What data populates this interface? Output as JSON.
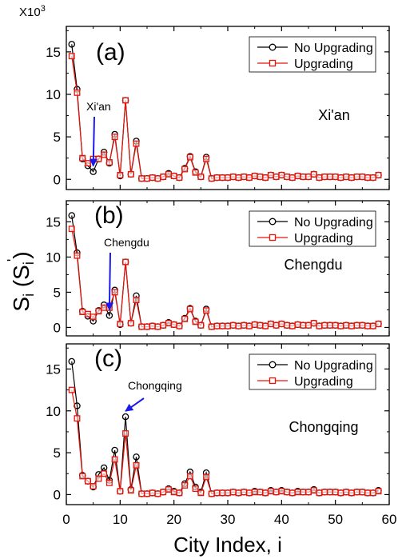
{
  "figure": {
    "multiplier": "X10",
    "multiplier_exp": "3",
    "ylabel_main": "S",
    "ylabel_sub": "i",
    "ylabel_paren_open": " (S",
    "ylabel_prime_sub": "i",
    "ylabel_prime": "'",
    "ylabel_paren_close": ")",
    "xlabel": "City Index, i",
    "xlim": [
      0,
      60
    ],
    "ylim": [
      -1.2,
      18
    ],
    "x_ticks": [
      0,
      10,
      20,
      30,
      40,
      50,
      60
    ],
    "y_ticks": [
      0,
      5,
      10,
      15
    ],
    "colors": {
      "no_upgrading": "#000000",
      "upgrading": "#e8140a",
      "arrow": "#1a1aee",
      "axis": "#000000"
    }
  },
  "chart_data": [
    {
      "type": "line",
      "panel": "(a)",
      "city": "Xi'an",
      "annotation": {
        "text": "Xi'an",
        "x": 5,
        "y": 0.9
      },
      "legend": [
        "No Upgrading",
        "Upgrading"
      ],
      "legend_position": "top-right",
      "x": [
        1,
        2,
        3,
        4,
        5,
        6,
        7,
        8,
        9,
        10,
        11,
        12,
        13,
        14,
        15,
        16,
        17,
        18,
        19,
        20,
        21,
        22,
        23,
        24,
        25,
        26,
        27,
        28,
        29,
        30,
        31,
        32,
        33,
        34,
        35,
        36,
        37,
        38,
        39,
        40,
        41,
        42,
        43,
        44,
        45,
        46,
        47,
        48,
        49,
        50,
        51,
        52,
        53,
        54,
        55,
        56,
        57,
        58
      ],
      "series": [
        {
          "name": "No Upgrading",
          "marker": "circle",
          "values": [
            15.9,
            10.6,
            2.4,
            1.6,
            0.9,
            2.4,
            3.2,
            1.9,
            5.3,
            0.4,
            9.3,
            0.6,
            4.5,
            0.1,
            0.1,
            0.2,
            0.1,
            0.3,
            0.7,
            0.4,
            0.2,
            1.3,
            2.7,
            0.9,
            0.3,
            2.6,
            0.1,
            0.2,
            0.2,
            0.2,
            0.3,
            0.2,
            0.3,
            0.2,
            0.4,
            0.3,
            0.2,
            0.5,
            0.3,
            0.5,
            0.3,
            0.2,
            0.4,
            0.3,
            0.3,
            0.6,
            0.2,
            0.3,
            0.3,
            0.3,
            0.2,
            0.3,
            0.2,
            0.3,
            0.3,
            0.2,
            0.2,
            0.5
          ]
        },
        {
          "name": "Upgrading",
          "marker": "square",
          "values": [
            14.5,
            10.2,
            2.5,
            1.9,
            2.4,
            2.4,
            2.9,
            2.0,
            5.0,
            0.5,
            9.3,
            0.6,
            4.2,
            0.1,
            0.1,
            0.2,
            0.1,
            0.3,
            0.6,
            0.4,
            0.2,
            1.2,
            2.6,
            0.8,
            0.3,
            2.4,
            0.1,
            0.2,
            0.2,
            0.2,
            0.3,
            0.2,
            0.3,
            0.2,
            0.4,
            0.3,
            0.2,
            0.5,
            0.3,
            0.5,
            0.3,
            0.2,
            0.4,
            0.3,
            0.3,
            0.6,
            0.2,
            0.3,
            0.3,
            0.3,
            0.2,
            0.3,
            0.2,
            0.3,
            0.3,
            0.2,
            0.2,
            0.5
          ]
        }
      ]
    },
    {
      "type": "line",
      "panel": "(b)",
      "city": "Chengdu",
      "annotation": {
        "text": "Chengdu",
        "x": 8,
        "y": 1.7
      },
      "legend": [
        "No Upgrading",
        "Upgrading"
      ],
      "legend_position": "top-right",
      "x": [
        1,
        2,
        3,
        4,
        5,
        6,
        7,
        8,
        9,
        10,
        11,
        12,
        13,
        14,
        15,
        16,
        17,
        18,
        19,
        20,
        21,
        22,
        23,
        24,
        25,
        26,
        27,
        28,
        29,
        30,
        31,
        32,
        33,
        34,
        35,
        36,
        37,
        38,
        39,
        40,
        41,
        42,
        43,
        44,
        45,
        46,
        47,
        48,
        49,
        50,
        51,
        52,
        53,
        54,
        55,
        56,
        57,
        58
      ],
      "series": [
        {
          "name": "No Upgrading",
          "marker": "circle",
          "values": [
            15.9,
            10.6,
            2.3,
            1.6,
            0.9,
            2.4,
            3.2,
            1.7,
            5.3,
            0.4,
            9.3,
            0.6,
            4.5,
            0.1,
            0.1,
            0.2,
            0.1,
            0.3,
            0.7,
            0.4,
            0.2,
            1.3,
            2.7,
            0.9,
            0.3,
            2.6,
            0.1,
            0.2,
            0.2,
            0.2,
            0.3,
            0.2,
            0.3,
            0.2,
            0.4,
            0.3,
            0.2,
            0.5,
            0.3,
            0.5,
            0.3,
            0.2,
            0.4,
            0.3,
            0.3,
            0.6,
            0.2,
            0.3,
            0.3,
            0.3,
            0.2,
            0.3,
            0.2,
            0.3,
            0.3,
            0.2,
            0.2,
            0.5
          ]
        },
        {
          "name": "Upgrading",
          "marker": "square",
          "values": [
            14.0,
            10.2,
            2.2,
            1.9,
            1.5,
            2.3,
            2.8,
            2.8,
            5.0,
            0.5,
            9.3,
            0.6,
            3.9,
            0.1,
            0.1,
            0.2,
            0.1,
            0.3,
            0.6,
            0.4,
            0.2,
            1.2,
            2.6,
            0.8,
            0.3,
            2.4,
            0.1,
            0.2,
            0.2,
            0.2,
            0.3,
            0.2,
            0.3,
            0.2,
            0.4,
            0.3,
            0.2,
            0.5,
            0.3,
            0.5,
            0.3,
            0.2,
            0.4,
            0.3,
            0.3,
            0.6,
            0.2,
            0.3,
            0.3,
            0.3,
            0.2,
            0.3,
            0.2,
            0.3,
            0.3,
            0.2,
            0.2,
            0.5
          ]
        }
      ]
    },
    {
      "type": "line",
      "panel": "(c)",
      "city": "Chongqing",
      "annotation": {
        "text": "Chongqing",
        "x": 11,
        "y": 9.3
      },
      "legend": [
        "No Upgrading",
        "Upgrading"
      ],
      "legend_position": "top-right",
      "x": [
        1,
        2,
        3,
        4,
        5,
        6,
        7,
        8,
        9,
        10,
        11,
        12,
        13,
        14,
        15,
        16,
        17,
        18,
        19,
        20,
        21,
        22,
        23,
        24,
        25,
        26,
        27,
        28,
        29,
        30,
        31,
        32,
        33,
        34,
        35,
        36,
        37,
        38,
        39,
        40,
        41,
        42,
        43,
        44,
        45,
        46,
        47,
        48,
        49,
        50,
        51,
        52,
        53,
        54,
        55,
        56,
        57,
        58
      ],
      "series": [
        {
          "name": "No Upgrading",
          "marker": "circle",
          "values": [
            15.9,
            10.6,
            2.3,
            1.6,
            0.9,
            2.4,
            3.2,
            1.7,
            5.3,
            0.4,
            9.3,
            0.6,
            4.5,
            0.1,
            0.1,
            0.2,
            0.1,
            0.3,
            0.7,
            0.4,
            0.2,
            1.3,
            2.7,
            0.9,
            0.3,
            2.6,
            0.1,
            0.2,
            0.2,
            0.2,
            0.3,
            0.2,
            0.3,
            0.2,
            0.4,
            0.3,
            0.2,
            0.5,
            0.3,
            0.5,
            0.3,
            0.2,
            0.4,
            0.3,
            0.3,
            0.6,
            0.2,
            0.3,
            0.3,
            0.3,
            0.2,
            0.3,
            0.2,
            0.3,
            0.3,
            0.2,
            0.2,
            0.5
          ]
        },
        {
          "name": "Upgrading",
          "marker": "square",
          "values": [
            12.5,
            9.1,
            2.2,
            1.6,
            1.0,
            1.9,
            2.5,
            1.4,
            4.2,
            0.4,
            7.3,
            0.5,
            3.5,
            0.1,
            0.1,
            0.2,
            0.1,
            0.3,
            0.6,
            0.3,
            0.2,
            1.1,
            2.2,
            0.7,
            0.2,
            2.1,
            0.1,
            0.2,
            0.2,
            0.2,
            0.3,
            0.2,
            0.3,
            0.2,
            0.3,
            0.3,
            0.2,
            0.4,
            0.3,
            0.4,
            0.3,
            0.2,
            0.3,
            0.3,
            0.3,
            0.5,
            0.2,
            0.3,
            0.3,
            0.3,
            0.2,
            0.3,
            0.2,
            0.3,
            0.3,
            0.2,
            0.2,
            0.4
          ]
        }
      ]
    }
  ]
}
